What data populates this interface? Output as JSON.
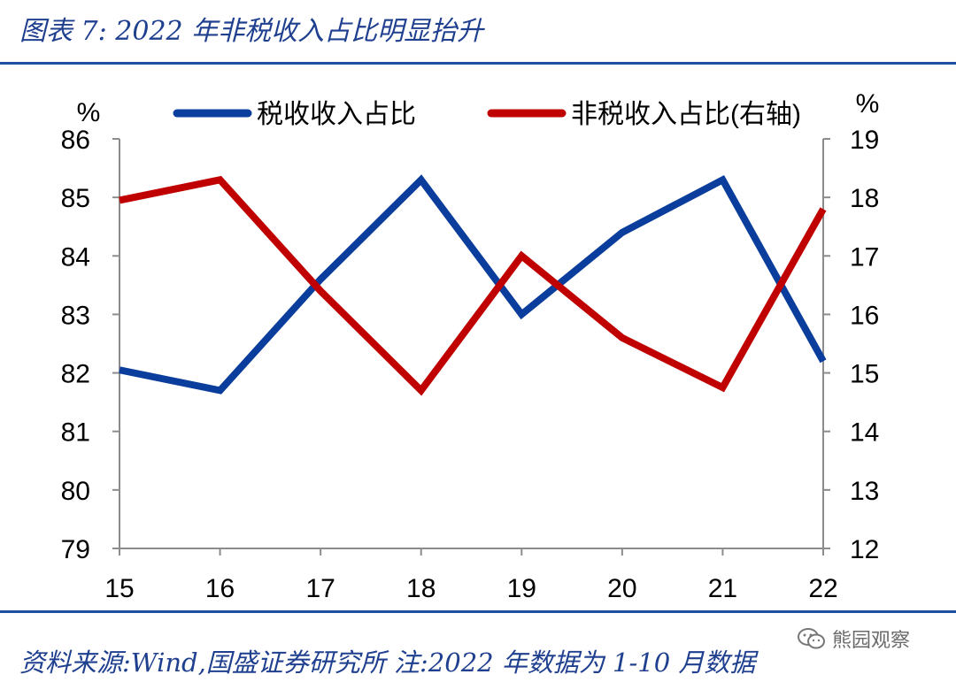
{
  "header": {
    "title": "图表 7:  2022 年非税收入占比明显抬升"
  },
  "chart_data": {
    "type": "line",
    "x": [
      "15",
      "16",
      "17",
      "18",
      "19",
      "20",
      "21",
      "22"
    ],
    "y_left": {
      "unit": "%",
      "min": 79,
      "max": 86,
      "ticks": [
        79,
        80,
        81,
        82,
        83,
        84,
        85,
        86
      ]
    },
    "y_right": {
      "unit": "%",
      "min": 12,
      "max": 19,
      "ticks": [
        12,
        13,
        14,
        15,
        16,
        17,
        18,
        19
      ]
    },
    "series": [
      {
        "name": "税收收入占比",
        "axis": "left",
        "color": "#0a3d9c",
        "values": [
          82.05,
          81.7,
          83.6,
          85.3,
          83.0,
          84.4,
          85.3,
          82.2
        ]
      },
      {
        "name": "非税收入占比(右轴)",
        "axis": "right",
        "color": "#c00000",
        "values": [
          17.95,
          18.3,
          16.4,
          14.7,
          17.0,
          15.6,
          14.75,
          17.8
        ]
      }
    ],
    "legend": "top",
    "grid": false
  },
  "footer": {
    "source": "资料来源:Wind,国盛证券研究所 注:2022 年数据为 1-10 月数据",
    "watermark": "熊园观察"
  }
}
